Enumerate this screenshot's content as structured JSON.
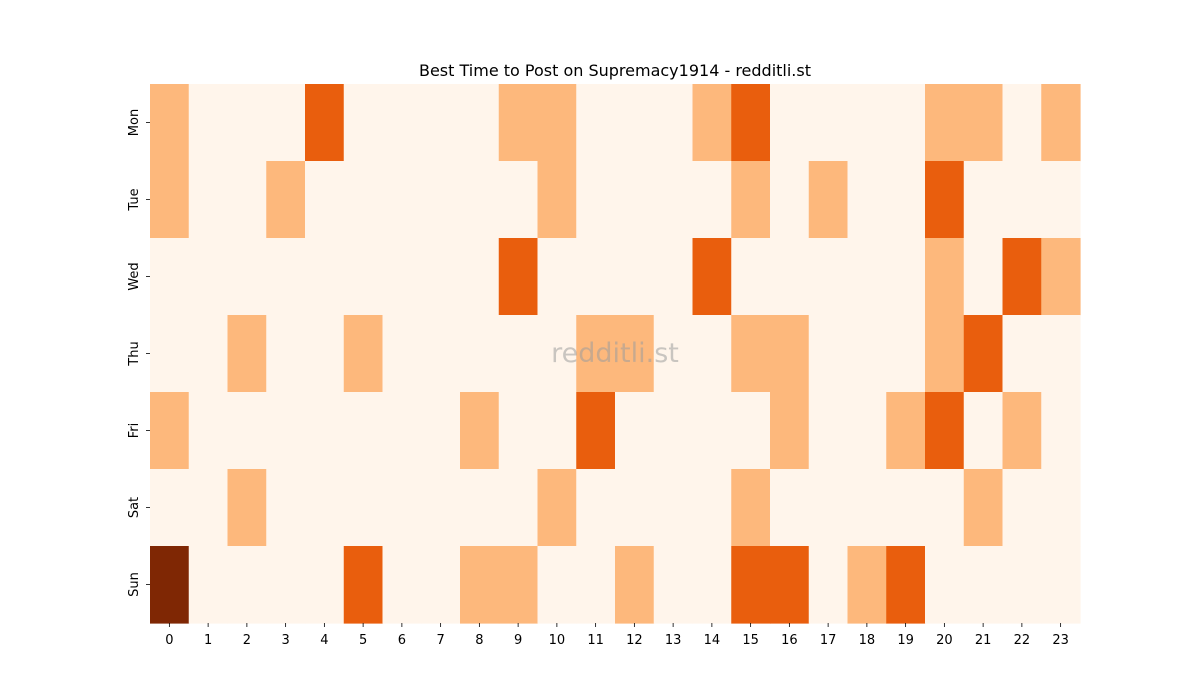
{
  "chart_data": {
    "type": "heatmap",
    "title": "Best Time to Post on Supremacy1914 - redditli.st",
    "watermark": "redditli.st",
    "xlabel": "",
    "ylabel": "",
    "x": [
      "0",
      "1",
      "2",
      "3",
      "4",
      "5",
      "6",
      "7",
      "8",
      "9",
      "10",
      "11",
      "12",
      "13",
      "14",
      "15",
      "16",
      "17",
      "18",
      "19",
      "20",
      "21",
      "22",
      "23"
    ],
    "y": [
      "Mon",
      "Tue",
      "Wed",
      "Thu",
      "Fri",
      "Sat",
      "Sun"
    ],
    "values": [
      [
        1,
        0,
        0,
        0,
        2,
        0,
        0,
        0,
        0,
        1,
        1,
        0,
        0,
        0,
        1,
        2,
        0,
        0,
        0,
        0,
        1,
        1,
        0,
        1
      ],
      [
        1,
        0,
        0,
        1,
        0,
        0,
        0,
        0,
        0,
        0,
        1,
        0,
        0,
        0,
        0,
        1,
        0,
        1,
        0,
        0,
        2,
        0,
        0,
        0
      ],
      [
        0,
        0,
        0,
        0,
        0,
        0,
        0,
        0,
        0,
        2,
        0,
        0,
        0,
        0,
        2,
        0,
        0,
        0,
        0,
        0,
        1,
        0,
        2,
        1
      ],
      [
        0,
        0,
        1,
        0,
        0,
        1,
        0,
        0,
        0,
        0,
        0,
        1,
        1,
        0,
        0,
        1,
        1,
        0,
        0,
        0,
        1,
        2,
        0,
        0
      ],
      [
        1,
        0,
        0,
        0,
        0,
        0,
        0,
        0,
        1,
        0,
        0,
        2,
        0,
        0,
        0,
        0,
        1,
        0,
        0,
        1,
        2,
        0,
        1,
        0
      ],
      [
        0,
        0,
        1,
        0,
        0,
        0,
        0,
        0,
        0,
        0,
        1,
        0,
        0,
        0,
        0,
        1,
        0,
        0,
        0,
        0,
        0,
        1,
        0,
        0
      ],
      [
        3,
        0,
        0,
        0,
        0,
        2,
        0,
        0,
        1,
        1,
        0,
        0,
        1,
        0,
        0,
        2,
        2,
        0,
        1,
        2,
        0,
        0,
        0,
        0
      ]
    ],
    "colorscale": [
      "#fff5eb",
      "#fdb87c",
      "#e95e0d",
      "#7f2704"
    ],
    "colorbar": false,
    "grid": false
  }
}
